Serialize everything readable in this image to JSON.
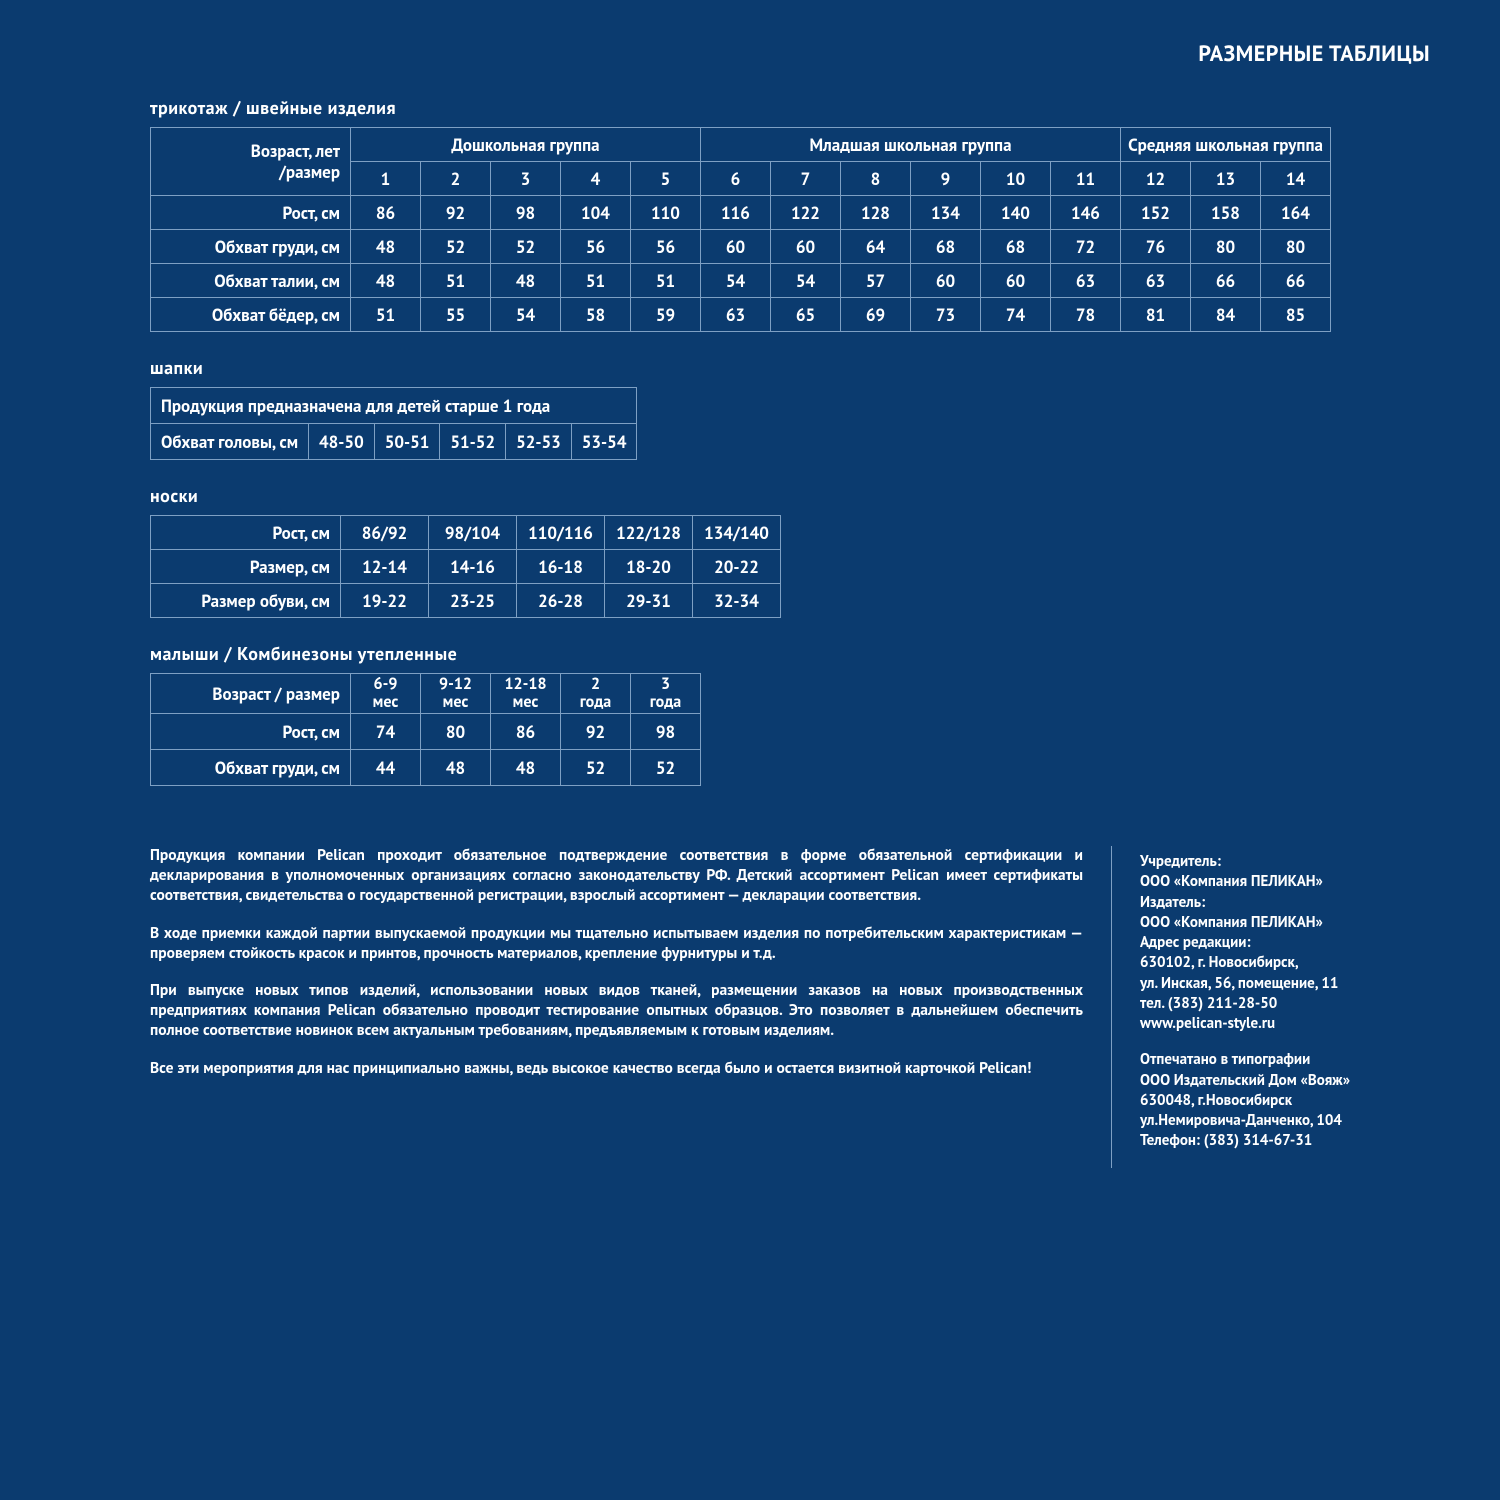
{
  "colors": {
    "background": "#0b3b6f",
    "border": "#7ea0c4",
    "text": "#ffffff"
  },
  "page_header": "РАЗМЕРНЫЕ ТАБЛИЦЫ",
  "t1": {
    "title": "трикотаж / швейные изделия",
    "corner_l1": "Возраст, лет",
    "corner_l2": "/размер",
    "groups": [
      "Дошкольная группа",
      "Младшая школьная группа",
      "Средняя школьная группа"
    ],
    "group_spans": [
      5,
      6,
      3
    ],
    "sizes": [
      "1",
      "2",
      "3",
      "4",
      "5",
      "6",
      "7",
      "8",
      "9",
      "10",
      "11",
      "12",
      "13",
      "14"
    ],
    "row_labels": [
      "Рост, см",
      "Обхват груди, см",
      "Обхват талии, см",
      "Обхват бёдер, см"
    ],
    "rows": [
      [
        "86",
        "92",
        "98",
        "104",
        "110",
        "116",
        "122",
        "128",
        "134",
        "140",
        "146",
        "152",
        "158",
        "164"
      ],
      [
        "48",
        "52",
        "52",
        "56",
        "56",
        "60",
        "60",
        "64",
        "68",
        "68",
        "72",
        "76",
        "80",
        "80"
      ],
      [
        "48",
        "51",
        "48",
        "51",
        "51",
        "54",
        "54",
        "57",
        "60",
        "60",
        "63",
        "63",
        "66",
        "66"
      ],
      [
        "51",
        "55",
        "54",
        "58",
        "59",
        "63",
        "65",
        "69",
        "73",
        "74",
        "78",
        "81",
        "84",
        "85"
      ]
    ]
  },
  "t2": {
    "title": "шапки",
    "note": "Продукция предназначена для детей старше 1 года",
    "row_label": "Обхват головы, см",
    "values": [
      "48-50",
      "50-51",
      "51-52",
      "52-53",
      "53-54"
    ]
  },
  "t3": {
    "title": "носки",
    "row_labels": [
      "Рост, см",
      "Размер, см",
      "Размер обуви, см"
    ],
    "rows": [
      [
        "86/92",
        "98/104",
        "110/116",
        "122/128",
        "134/140"
      ],
      [
        "12-14",
        "14-16",
        "16-18",
        "18-20",
        "20-22"
      ],
      [
        "19-22",
        "23-25",
        "26-28",
        "29-31",
        "32-34"
      ]
    ]
  },
  "t4": {
    "title": "малыши / Комбинезоны утепленные",
    "hdr_label": "Возраст / размер",
    "ages_l1": [
      "6-9",
      "9-12",
      "12-18",
      "2",
      "3"
    ],
    "ages_l2": [
      "мес",
      "мес",
      "мес",
      "года",
      "года"
    ],
    "row_labels": [
      "Рост, см",
      "Обхват груди, см"
    ],
    "rows": [
      [
        "74",
        "80",
        "86",
        "92",
        "98"
      ],
      [
        "44",
        "48",
        "48",
        "52",
        "52"
      ]
    ]
  },
  "footer_left": [
    "Продукция компании Pelican проходит обязательное подтверждение соответствия в форме обязательной сертификации и декларирования в уполномоченных организациях согласно законодательству РФ. Детский ассортимент Pelican имеет сертификаты соответствия, свидетельства о государственной регистрации, взрослый ассортимент — декларации соответствия.",
    "В ходе приемки каждой партии выпускаемой продукции мы тщательно испытываем изделия по потребительским характеристикам — проверяем стойкость красок и принтов, прочность материалов, крепление фурнитуры и т.д.",
    "При выпуске новых типов изделий, использовании новых видов тканей, размещении заказов на новых производственных предприятиях компания Pelican обязательно проводит тестирование опытных образцов. Это позволяет в дальнейшем обеспечить полное соответствие новинок всем актуальным требованиям, предъявляемым к готовым изделиям.",
    "Все эти мероприятия для нас принципиально важны, ведь высокое качество всегда было и остается визитной карточкой Pelican!"
  ],
  "footer_right": {
    "b1": "Учредитель:\nООО «Компания ПЕЛИКАН»\nИздатель:\nООО «Компания ПЕЛИКАН»\nАдрес редакции:\n630102, г. Новосибирск,\nул. Инская, 56, помещение, 11\nтел. (383) 211-28-50\nwww.pelican-style.ru",
    "b2": "Отпечатано в типографии\nООО Издательский Дом «Вояж»\n630048, г.Новосибирск\nул.Немировича-Данченко, 104\nТелефон: (383) 314-67-31"
  }
}
